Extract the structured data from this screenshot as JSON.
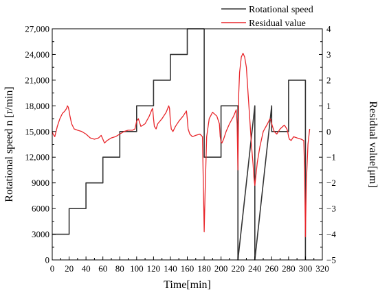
{
  "chart_data": {
    "type": "line",
    "xlabel": "Time[min]",
    "ylabel_left": "Rotational speed n [r/min]",
    "ylabel_right": "Residual value[μm]",
    "xlim": [
      0,
      320
    ],
    "ylim_left": [
      0,
      27000
    ],
    "ylim_right": [
      -5,
      4
    ],
    "x_ticks": [
      0,
      20,
      40,
      60,
      80,
      100,
      120,
      140,
      160,
      180,
      200,
      220,
      240,
      260,
      280,
      300,
      320
    ],
    "y_left_ticks": [
      0,
      3000,
      6000,
      9000,
      12000,
      15000,
      18000,
      21000,
      24000,
      27000
    ],
    "y_left_tick_labels": [
      "0",
      "3000",
      "6000",
      "9000",
      "12,000",
      "15,000",
      "18,000",
      "21,000",
      "24,000",
      "27,000"
    ],
    "y_right_ticks": [
      -5,
      -4,
      -3,
      -2,
      -1,
      0,
      1,
      2,
      3,
      4
    ],
    "grid": false,
    "legend_position": "top-right",
    "colors": {
      "speed": "#333333",
      "residual": "#e8262b"
    },
    "series": [
      {
        "name": "Rotational speed",
        "axis": "left",
        "x": [
          0,
          20,
          20,
          40,
          40,
          60,
          60,
          80,
          80,
          100,
          100,
          120,
          120,
          140,
          140,
          160,
          160,
          180,
          180,
          200,
          200,
          220,
          220,
          240,
          240,
          260,
          260,
          280,
          280,
          300,
          300
        ],
        "y": [
          3000,
          3000,
          6000,
          6000,
          9000,
          9000,
          12000,
          12000,
          15000,
          15000,
          18000,
          18000,
          21000,
          21000,
          24000,
          24000,
          27000,
          27000,
          12000,
          12000,
          18000,
          18000,
          0,
          18000,
          0,
          18000,
          15000,
          15000,
          21000,
          21000,
          0
        ]
      },
      {
        "name": "Residual value",
        "axis": "right",
        "x": [
          0,
          1,
          3,
          6,
          9,
          12,
          15,
          17,
          18,
          19,
          20,
          21,
          23,
          26,
          30,
          35,
          40,
          45,
          50,
          55,
          58,
          60,
          62,
          65,
          70,
          75,
          80,
          85,
          90,
          95,
          98,
          100,
          102,
          105,
          110,
          115,
          118,
          119,
          120,
          121,
          123,
          125,
          130,
          135,
          138,
          139,
          140,
          141,
          143,
          146,
          150,
          155,
          158,
          159,
          160,
          161,
          163,
          166,
          170,
          175,
          178,
          179,
          180,
          181,
          183,
          186,
          190,
          195,
          198,
          199,
          200,
          201,
          203,
          206,
          210,
          215,
          218,
          219,
          220,
          221,
          222,
          224,
          226,
          228,
          230,
          232,
          234,
          236,
          238,
          239,
          240,
          241,
          243,
          246,
          250,
          255,
          258,
          259,
          260,
          261,
          263,
          266,
          270,
          275,
          278,
          279,
          280,
          281,
          283,
          286,
          290,
          295,
          298,
          299,
          300,
          301,
          303,
          305
        ],
        "y": [
          0.0,
          -0.1,
          -0.2,
          0.2,
          0.5,
          0.7,
          0.8,
          0.9,
          1.0,
          0.95,
          0.8,
          0.6,
          0.3,
          0.1,
          0.05,
          0.0,
          -0.1,
          -0.25,
          -0.3,
          -0.25,
          -0.15,
          -0.3,
          -0.45,
          -0.35,
          -0.25,
          -0.2,
          -0.1,
          0.0,
          0.05,
          0.05,
          0.1,
          0.4,
          0.5,
          0.2,
          0.3,
          0.6,
          0.85,
          0.9,
          0.5,
          0.2,
          0.1,
          0.3,
          0.5,
          0.75,
          1.0,
          0.9,
          0.4,
          0.1,
          0.0,
          0.2,
          0.4,
          0.6,
          0.75,
          0.8,
          0.5,
          0.1,
          -0.1,
          -0.2,
          -0.15,
          -0.1,
          -0.2,
          -2.0,
          -3.9,
          -2.5,
          -0.2,
          0.5,
          0.75,
          0.6,
          0.3,
          -0.2,
          -0.4,
          -0.45,
          -0.3,
          0.0,
          0.3,
          0.6,
          0.85,
          0.3,
          -1.5,
          1.5,
          2.3,
          2.9,
          3.05,
          2.9,
          2.5,
          1.5,
          0.5,
          -0.5,
          -1.3,
          -1.8,
          -2.1,
          -1.8,
          -1.2,
          -0.6,
          0.0,
          0.3,
          0.5,
          0.45,
          0.3,
          0.2,
          0.0,
          -0.1,
          0.1,
          0.25,
          0.1,
          0.0,
          -0.2,
          -0.3,
          -0.35,
          -0.2,
          -0.25,
          -0.3,
          -0.35,
          -1.5,
          -4.1,
          -2.0,
          -0.5,
          0.1
        ]
      }
    ]
  }
}
